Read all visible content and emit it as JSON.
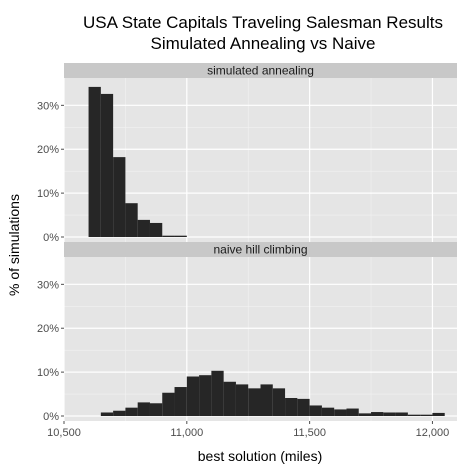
{
  "chart_data": {
    "type": "bar",
    "title": "USA State Capitals Traveling Salesman Results",
    "subtitle": "Simulated Annealing vs Naive",
    "xlabel": "best solution (miles)",
    "ylabel": "% of simulations",
    "xlim": [
      10500,
      12100
    ],
    "ylim": [
      0,
      36
    ],
    "x_ticks": [
      10500,
      11000,
      11500,
      12000
    ],
    "x_tick_labels": [
      "10,500",
      "11,000",
      "11,500",
      "12,000"
    ],
    "y_ticks": [
      0,
      10,
      20,
      30
    ],
    "y_tick_labels": [
      "0%",
      "10%",
      "20%",
      "30%"
    ],
    "bin_width": 50,
    "grid": true,
    "colors": {
      "bar": "#262626",
      "panel": "#e5e5e5",
      "strip": "#c8c8c8",
      "grid": "#ffffff",
      "text": "#000000",
      "tick_text": "#4d4d4d"
    },
    "panels": [
      {
        "name": "simulated annealing",
        "bins": [
          {
            "x0": 10600,
            "x1": 10650,
            "value": 34.2
          },
          {
            "x0": 10650,
            "x1": 10700,
            "value": 32.6
          },
          {
            "x0": 10700,
            "x1": 10750,
            "value": 18.2
          },
          {
            "x0": 10750,
            "x1": 10800,
            "value": 7.7
          },
          {
            "x0": 10800,
            "x1": 10850,
            "value": 3.9
          },
          {
            "x0": 10850,
            "x1": 10900,
            "value": 3.2
          },
          {
            "x0": 10900,
            "x1": 10950,
            "value": 0.3
          },
          {
            "x0": 10950,
            "x1": 11000,
            "value": 0.3
          }
        ]
      },
      {
        "name": "naive hill climbing",
        "bins": [
          {
            "x0": 10650,
            "x1": 10700,
            "value": 0.8
          },
          {
            "x0": 10700,
            "x1": 10750,
            "value": 1.2
          },
          {
            "x0": 10750,
            "x1": 10800,
            "value": 1.9
          },
          {
            "x0": 10800,
            "x1": 10850,
            "value": 3.1
          },
          {
            "x0": 10850,
            "x1": 10900,
            "value": 2.9
          },
          {
            "x0": 10900,
            "x1": 10950,
            "value": 5.3
          },
          {
            "x0": 10950,
            "x1": 11000,
            "value": 6.6
          },
          {
            "x0": 11000,
            "x1": 11050,
            "value": 9.0
          },
          {
            "x0": 11050,
            "x1": 11100,
            "value": 9.3
          },
          {
            "x0": 11100,
            "x1": 11150,
            "value": 10.3
          },
          {
            "x0": 11150,
            "x1": 11200,
            "value": 7.8
          },
          {
            "x0": 11200,
            "x1": 11250,
            "value": 7.2
          },
          {
            "x0": 11250,
            "x1": 11300,
            "value": 6.3
          },
          {
            "x0": 11300,
            "x1": 11350,
            "value": 7.2
          },
          {
            "x0": 11350,
            "x1": 11400,
            "value": 6.3
          },
          {
            "x0": 11400,
            "x1": 11450,
            "value": 4.1
          },
          {
            "x0": 11450,
            "x1": 11500,
            "value": 3.9
          },
          {
            "x0": 11500,
            "x1": 11550,
            "value": 2.4
          },
          {
            "x0": 11550,
            "x1": 11600,
            "value": 1.9
          },
          {
            "x0": 11600,
            "x1": 11650,
            "value": 1.5
          },
          {
            "x0": 11650,
            "x1": 11700,
            "value": 1.7
          },
          {
            "x0": 11700,
            "x1": 11750,
            "value": 0.6
          },
          {
            "x0": 11750,
            "x1": 11800,
            "value": 0.9
          },
          {
            "x0": 11800,
            "x1": 11850,
            "value": 0.8
          },
          {
            "x0": 11850,
            "x1": 11900,
            "value": 0.8
          },
          {
            "x0": 11900,
            "x1": 11950,
            "value": 0.3
          },
          {
            "x0": 11950,
            "x1": 12000,
            "value": 0.3
          },
          {
            "x0": 12000,
            "x1": 12050,
            "value": 0.7
          }
        ]
      }
    ]
  }
}
